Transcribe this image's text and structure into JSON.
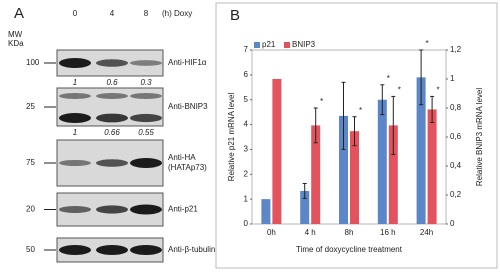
{
  "panel_a": {
    "label": "A",
    "mw_label": [
      "MW",
      "KDa"
    ],
    "timepoints": [
      "0",
      "4",
      "8"
    ],
    "time_unit": "(h) Doxy",
    "blots": [
      {
        "mw": "100",
        "antibody": [
          "Anti-HIF1α"
        ],
        "quantification": [
          "1",
          "0.6",
          "0.3"
        ]
      },
      {
        "mw": "25",
        "antibody": [
          "Anti-BNIP3"
        ],
        "quantification": [
          "1",
          "0.66",
          "0.55"
        ]
      },
      {
        "mw": "75",
        "antibody": [
          "Anti-HA",
          "(HATAp73)"
        ]
      },
      {
        "mw": "20",
        "antibody": [
          "Anti-p21"
        ]
      },
      {
        "mw": "50",
        "antibody": [
          "Anti-β-tubulin"
        ]
      }
    ]
  },
  "chart_data": {
    "type": "bar",
    "label": "B",
    "xlabel": "Time of doxycycline treatment",
    "ylabel": "Relative p21 mRNA level",
    "y2label": "Relative BNIP3 mRNA level",
    "categories": [
      "0h",
      "4 h",
      "8h",
      "16 h",
      "24h"
    ],
    "series": [
      {
        "name": "p21",
        "color": "#5b86c8",
        "values": [
          1,
          1.33,
          4.35,
          5.0,
          5.9
        ],
        "errors": [
          null,
          0.3,
          1.35,
          0.6,
          1.1
        ],
        "annotations": [
          null,
          null,
          null,
          "*",
          "*"
        ]
      },
      {
        "name": "BNIP3",
        "color": "#e2535d",
        "axis": "y2",
        "values": [
          1.0,
          0.68,
          0.64,
          0.68,
          0.79
        ],
        "errors": [
          null,
          0.12,
          0.1,
          0.2,
          0.09
        ],
        "annotations": [
          null,
          "*",
          "*",
          "*",
          "*"
        ]
      }
    ],
    "ylim": [
      0,
      7
    ],
    "yticks": [
      0,
      1,
      2,
      3,
      4,
      5,
      6,
      7
    ],
    "y2lim": [
      0,
      1.2
    ],
    "y2ticks": [
      0,
      {
        "value": 0.2,
        "label": "0,2"
      },
      {
        "value": 0.4,
        "label": "0,4"
      },
      {
        "value": 0.6,
        "label": "0,6"
      },
      {
        "value": 0.8,
        "label": "0,8"
      },
      1,
      {
        "value": 1.2,
        "label": "1,2"
      }
    ],
    "legend": "top-left"
  }
}
